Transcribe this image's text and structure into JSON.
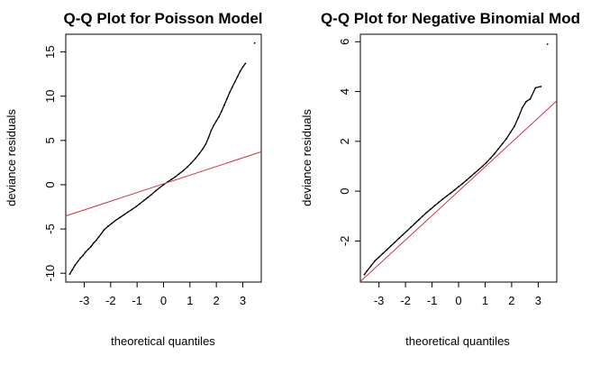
{
  "chart_data": [
    {
      "type": "scatter",
      "title": "Q-Q Plot for Poisson Model",
      "xlabel": "theoretical quantiles",
      "ylabel": "deviance residuals",
      "xlim": [
        -3.7,
        3.7
      ],
      "ylim": [
        -11,
        17
      ],
      "x_ticks": [
        -3,
        -2,
        -1,
        0,
        1,
        2,
        3
      ],
      "y_ticks": [
        -10,
        -5,
        0,
        5,
        10,
        15
      ],
      "grid": false,
      "points": [
        [
          -3.55,
          -10.1
        ],
        [
          -3.45,
          -9.6
        ],
        [
          -3.35,
          -9.1
        ],
        [
          -3.25,
          -8.7
        ],
        [
          -3.15,
          -8.3
        ],
        [
          -3.05,
          -8.0
        ],
        [
          -2.95,
          -7.6
        ],
        [
          -2.85,
          -7.3
        ],
        [
          -2.75,
          -7.0
        ],
        [
          -2.65,
          -6.6
        ],
        [
          -2.55,
          -6.3
        ],
        [
          -2.45,
          -5.9
        ],
        [
          -2.35,
          -5.5
        ],
        [
          -2.25,
          -5.1
        ],
        [
          -2.1,
          -4.7
        ],
        [
          -1.95,
          -4.35
        ],
        [
          -1.8,
          -4.0
        ],
        [
          -1.65,
          -3.7
        ],
        [
          -1.5,
          -3.4
        ],
        [
          -1.35,
          -3.1
        ],
        [
          -1.2,
          -2.8
        ],
        [
          -1.05,
          -2.5
        ],
        [
          -0.9,
          -2.15
        ],
        [
          -0.75,
          -1.8
        ],
        [
          -0.6,
          -1.45
        ],
        [
          -0.45,
          -1.1
        ],
        [
          -0.3,
          -0.7
        ],
        [
          -0.15,
          -0.35
        ],
        [
          0.0,
          0.0
        ],
        [
          0.15,
          0.3
        ],
        [
          0.3,
          0.6
        ],
        [
          0.45,
          0.9
        ],
        [
          0.6,
          1.25
        ],
        [
          0.75,
          1.6
        ],
        [
          0.9,
          2.0
        ],
        [
          1.05,
          2.45
        ],
        [
          1.2,
          2.95
        ],
        [
          1.35,
          3.5
        ],
        [
          1.5,
          4.1
        ],
        [
          1.6,
          4.6
        ],
        [
          1.7,
          5.3
        ],
        [
          1.8,
          6.1
        ],
        [
          1.9,
          6.7
        ],
        [
          2.0,
          7.2
        ],
        [
          2.1,
          7.7
        ],
        [
          2.2,
          8.3
        ],
        [
          2.3,
          9.0
        ],
        [
          2.4,
          9.7
        ],
        [
          2.5,
          10.4
        ],
        [
          2.6,
          11.0
        ],
        [
          2.7,
          11.6
        ],
        [
          2.8,
          12.2
        ],
        [
          2.9,
          12.8
        ],
        [
          3.0,
          13.3
        ],
        [
          3.1,
          13.7
        ],
        [
          3.45,
          16.0
        ]
      ],
      "reference_line": {
        "intercept": 0.1,
        "slope": 0.98
      },
      "line_color": "#cc3344",
      "point_color": "#000000"
    },
    {
      "type": "scatter",
      "title": "Q-Q Plot for Negative Binomial Mod",
      "xlabel": "theoretical quantiles",
      "ylabel": "deviance residuals",
      "xlim": [
        -3.7,
        3.7
      ],
      "ylim": [
        -3.65,
        6.3
      ],
      "x_ticks": [
        -3,
        -2,
        -1,
        0,
        1,
        2,
        3
      ],
      "y_ticks": [
        -2,
        0,
        2,
        4,
        6
      ],
      "grid": false,
      "points": [
        [
          -3.55,
          -3.35
        ],
        [
          -3.45,
          -3.2
        ],
        [
          -3.3,
          -3.0
        ],
        [
          -3.15,
          -2.8
        ],
        [
          -3.0,
          -2.65
        ],
        [
          -2.85,
          -2.5
        ],
        [
          -2.7,
          -2.35
        ],
        [
          -2.55,
          -2.2
        ],
        [
          -2.4,
          -2.05
        ],
        [
          -2.25,
          -1.9
        ],
        [
          -2.1,
          -1.75
        ],
        [
          -1.95,
          -1.6
        ],
        [
          -1.8,
          -1.45
        ],
        [
          -1.65,
          -1.3
        ],
        [
          -1.5,
          -1.15
        ],
        [
          -1.35,
          -1.0
        ],
        [
          -1.2,
          -0.85
        ],
        [
          -1.05,
          -0.72
        ],
        [
          -0.9,
          -0.58
        ],
        [
          -0.75,
          -0.45
        ],
        [
          -0.6,
          -0.32
        ],
        [
          -0.45,
          -0.2
        ],
        [
          -0.3,
          -0.08
        ],
        [
          -0.15,
          0.05
        ],
        [
          0.0,
          0.18
        ],
        [
          0.15,
          0.3
        ],
        [
          0.3,
          0.44
        ],
        [
          0.45,
          0.58
        ],
        [
          0.6,
          0.72
        ],
        [
          0.75,
          0.86
        ],
        [
          0.9,
          1.0
        ],
        [
          1.05,
          1.15
        ],
        [
          1.2,
          1.32
        ],
        [
          1.35,
          1.5
        ],
        [
          1.5,
          1.7
        ],
        [
          1.65,
          1.9
        ],
        [
          1.8,
          2.1
        ],
        [
          1.95,
          2.35
        ],
        [
          2.1,
          2.6
        ],
        [
          2.25,
          2.95
        ],
        [
          2.4,
          3.35
        ],
        [
          2.55,
          3.6
        ],
        [
          2.7,
          3.7
        ],
        [
          2.9,
          4.15
        ],
        [
          3.1,
          4.2
        ],
        [
          3.35,
          5.9
        ]
      ],
      "reference_line": {
        "intercept": 0.0,
        "slope": 0.98
      },
      "line_color": "#cc3344",
      "point_color": "#000000"
    }
  ]
}
